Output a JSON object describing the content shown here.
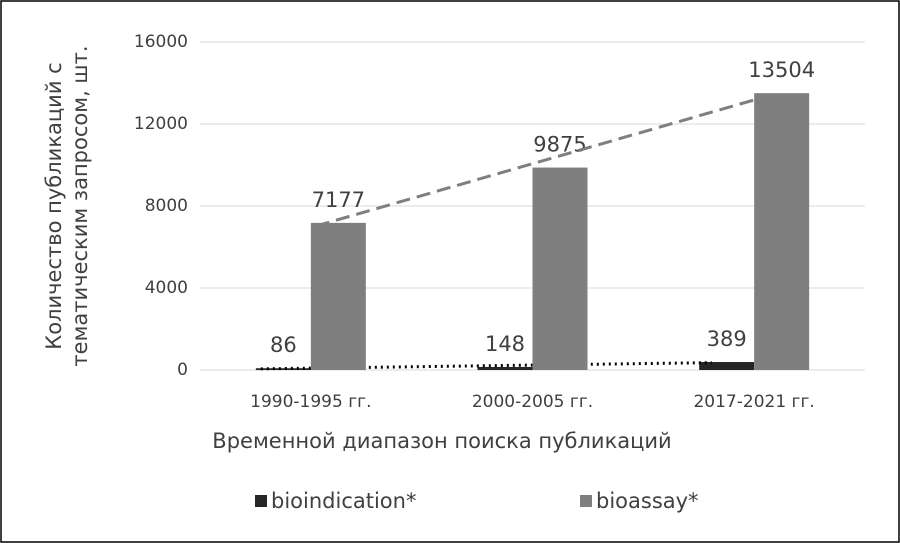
{
  "chart_data": {
    "type": "bar",
    "y_label": [
      "Количество публикаций с",
      "тематическим запросом, шт."
    ],
    "x_label": "Временной диапазон поиска публикаций",
    "categories": [
      "1990-1995 гг.",
      "2000-2005 гг.",
      "2017-2021 гг."
    ],
    "series": [
      {
        "name": "bioindication*",
        "color": "#262626",
        "values": [
          86,
          148,
          389
        ],
        "trendline": "dotted"
      },
      {
        "name": "bioassay*",
        "color": "#7f7f7f",
        "values": [
          7177,
          9875,
          13504
        ],
        "trendline": "dashed"
      }
    ],
    "ylim": [
      0,
      16000
    ],
    "yticks": [
      0,
      4000,
      8000,
      12000,
      16000
    ],
    "grid": true,
    "legend": "bottom"
  }
}
